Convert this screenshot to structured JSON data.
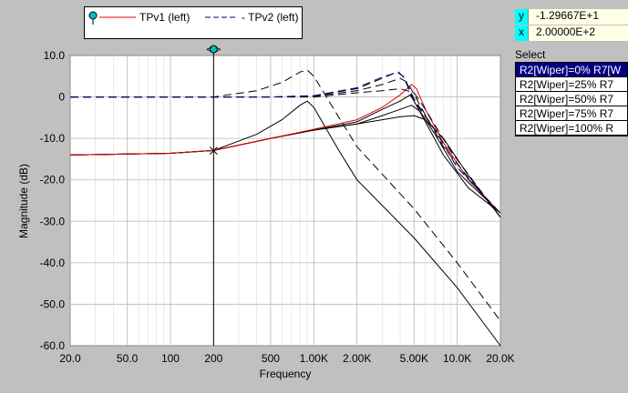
{
  "legend": {
    "items": [
      {
        "label": "TPv1 (left)",
        "color": "#e00000",
        "dash": "solid"
      },
      {
        "label": "- TPv2 (left)",
        "color": "#000080",
        "dash": "dashed"
      }
    ]
  },
  "cursor_readout": {
    "y_label": "y",
    "y_value": "-1.29667E+1",
    "x_label": "x",
    "x_value": "2.00000E+2"
  },
  "select": {
    "label": "Select",
    "options": [
      {
        "label": "R2[Wiper]=0% R7[W",
        "selected": true
      },
      {
        "label": "R2[Wiper]=25% R7",
        "selected": false
      },
      {
        "label": "R2[Wiper]=50% R7",
        "selected": false
      },
      {
        "label": "R2[Wiper]=75% R7",
        "selected": false
      },
      {
        "label": "R2[Wiper]=100% R",
        "selected": false
      }
    ]
  },
  "cursor_marker": "<>",
  "chart_data": {
    "type": "line",
    "xscale": "log",
    "xlabel": "Frequency",
    "ylabel": "Magnitude  (dB)",
    "xlim": [
      20,
      20000
    ],
    "ylim": [
      -60,
      10
    ],
    "xticks": [
      20,
      50,
      100,
      200,
      500,
      1000,
      2000,
      5000,
      10000,
      20000
    ],
    "xtick_labels": [
      "20.0",
      "50.0",
      "100",
      "200",
      "500",
      "1.00K",
      "2.00K",
      "5.00K",
      "10.0K",
      "20.0K"
    ],
    "yticks": [
      10,
      0,
      -10,
      -20,
      -30,
      -40,
      -50,
      -60
    ],
    "ytick_labels": [
      "10.0",
      "0",
      "-10.0",
      "-20.0",
      "-30.0",
      "-40.0",
      "-50.0",
      "-60.0"
    ],
    "grid": true,
    "cursor_x": 200,
    "series": [
      {
        "group": "TPv1",
        "style": "solid",
        "color": "#000000",
        "points": [
          [
            20,
            -14
          ],
          [
            100,
            -13.6
          ],
          [
            200,
            -12.9
          ],
          [
            400,
            -9
          ],
          [
            600,
            -5.5
          ],
          [
            800,
            -2
          ],
          [
            900,
            -1
          ],
          [
            1000,
            -2.5
          ],
          [
            1500,
            -13
          ],
          [
            2000,
            -20
          ],
          [
            5000,
            -34
          ],
          [
            10000,
            -46
          ],
          [
            20000,
            -60
          ]
        ]
      },
      {
        "group": "TPv1",
        "style": "solid",
        "color": "#000000",
        "points": [
          [
            20,
            -14
          ],
          [
            100,
            -13.6
          ],
          [
            200,
            -12.9
          ],
          [
            500,
            -10
          ],
          [
            1000,
            -8
          ],
          [
            2000,
            -6
          ],
          [
            3000,
            -3
          ],
          [
            4000,
            -1
          ],
          [
            4700,
            0.5
          ],
          [
            5000,
            -1
          ],
          [
            6000,
            -6
          ],
          [
            8000,
            -14
          ],
          [
            12000,
            -22
          ],
          [
            20000,
            -28
          ]
        ]
      },
      {
        "group": "TPv1",
        "style": "solid",
        "color": "#000000",
        "points": [
          [
            20,
            -14
          ],
          [
            100,
            -13.6
          ],
          [
            200,
            -12.9
          ],
          [
            500,
            -10
          ],
          [
            1000,
            -8
          ],
          [
            2000,
            -6.5
          ],
          [
            3000,
            -4.5
          ],
          [
            4000,
            -3
          ],
          [
            4800,
            -2
          ],
          [
            5500,
            -3.5
          ],
          [
            7000,
            -9
          ],
          [
            10000,
            -18
          ],
          [
            20000,
            -28
          ]
        ]
      },
      {
        "group": "TPv1",
        "style": "solid",
        "color": "#000000",
        "points": [
          [
            20,
            -14
          ],
          [
            100,
            -13.6
          ],
          [
            200,
            -12.9
          ],
          [
            500,
            -10
          ],
          [
            1000,
            -8
          ],
          [
            2000,
            -6.5
          ],
          [
            3000,
            -5.5
          ],
          [
            4000,
            -4.8
          ],
          [
            5000,
            -4.5
          ],
          [
            6000,
            -5.5
          ],
          [
            8000,
            -10
          ],
          [
            12000,
            -19
          ],
          [
            20000,
            -29
          ]
        ]
      },
      {
        "group": "TPv1",
        "style": "solid",
        "color": "#e00000",
        "points": [
          [
            20,
            -14
          ],
          [
            100,
            -13.6
          ],
          [
            200,
            -12.9
          ],
          [
            500,
            -10
          ],
          [
            1000,
            -7.8
          ],
          [
            2000,
            -5.5
          ],
          [
            3000,
            -2.5
          ],
          [
            4000,
            0.5
          ],
          [
            4800,
            3
          ],
          [
            5200,
            2
          ],
          [
            6000,
            -3
          ],
          [
            8000,
            -11
          ],
          [
            12000,
            -20
          ],
          [
            20000,
            -28
          ]
        ]
      },
      {
        "group": "TPv2",
        "style": "dashed",
        "color": "#000000",
        "points": [
          [
            20,
            0
          ],
          [
            100,
            0
          ],
          [
            200,
            0
          ],
          [
            400,
            1.5
          ],
          [
            600,
            3.5
          ],
          [
            800,
            6
          ],
          [
            900,
            6.5
          ],
          [
            1000,
            5
          ],
          [
            1500,
            -5
          ],
          [
            2000,
            -12
          ],
          [
            5000,
            -27
          ],
          [
            10000,
            -40
          ],
          [
            20000,
            -54
          ]
        ]
      },
      {
        "group": "TPv2",
        "style": "dashed",
        "color": "#000000",
        "points": [
          [
            20,
            0
          ],
          [
            100,
            0
          ],
          [
            200,
            0
          ],
          [
            500,
            0
          ],
          [
            1000,
            0.3
          ],
          [
            2000,
            2
          ],
          [
            3000,
            4.5
          ],
          [
            3800,
            6
          ],
          [
            4200,
            5
          ],
          [
            5000,
            -1
          ],
          [
            7000,
            -8
          ],
          [
            10000,
            -17
          ],
          [
            20000,
            -28
          ]
        ]
      },
      {
        "group": "TPv2",
        "style": "dashed",
        "color": "#000000",
        "points": [
          [
            20,
            0
          ],
          [
            100,
            0
          ],
          [
            200,
            0
          ],
          [
            500,
            0
          ],
          [
            1000,
            0.2
          ],
          [
            2000,
            1.5
          ],
          [
            3000,
            3
          ],
          [
            4000,
            4.5
          ],
          [
            4500,
            3.5
          ],
          [
            5500,
            -2
          ],
          [
            8000,
            -12
          ],
          [
            20000,
            -29
          ]
        ]
      },
      {
        "group": "TPv2",
        "style": "dashed",
        "color": "#000000",
        "points": [
          [
            20,
            0
          ],
          [
            100,
            0
          ],
          [
            200,
            0
          ],
          [
            500,
            0
          ],
          [
            1000,
            0
          ],
          [
            2000,
            1
          ],
          [
            3000,
            1.5
          ],
          [
            4000,
            2
          ],
          [
            5000,
            1
          ],
          [
            6000,
            -3
          ],
          [
            9000,
            -13
          ],
          [
            20000,
            -29
          ]
        ]
      },
      {
        "group": "TPv2",
        "style": "dashed",
        "color": "#000080",
        "points": [
          [
            20,
            0
          ],
          [
            100,
            0
          ],
          [
            200,
            0
          ],
          [
            500,
            0
          ],
          [
            1000,
            0.3
          ],
          [
            2000,
            2.2
          ],
          [
            3000,
            4.8
          ],
          [
            3900,
            6
          ],
          [
            4300,
            4.5
          ],
          [
            5000,
            -0.5
          ],
          [
            7000,
            -8
          ],
          [
            10000,
            -17
          ],
          [
            20000,
            -28
          ]
        ]
      }
    ]
  }
}
